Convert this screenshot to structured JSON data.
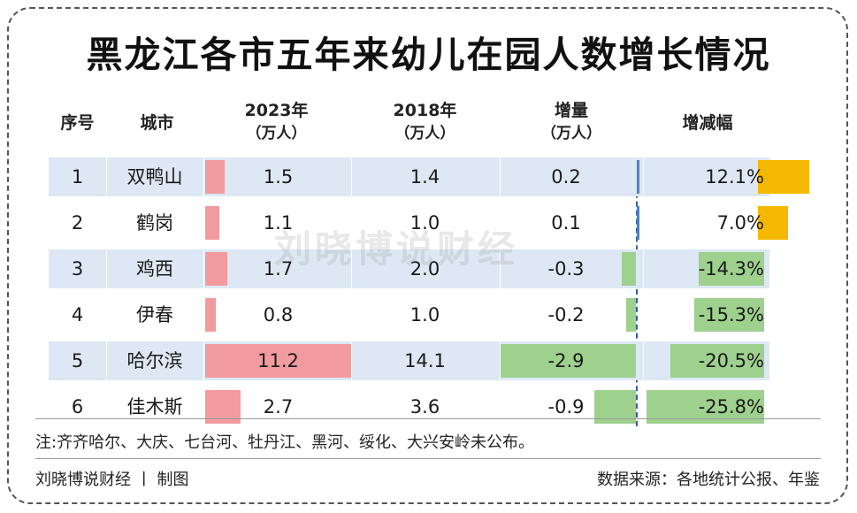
{
  "title": "黑龙江各市五年来幼儿在园人数增长情况",
  "headers": {
    "seq": "序号",
    "city": "城市",
    "y2023": "2023年",
    "y2023_unit": "（万人）",
    "y2018": "2018年",
    "y2018_unit": "（万人）",
    "inc": "增量",
    "inc_unit": "（万人）",
    "rate": "增减幅"
  },
  "watermark": "刘晓博说财经",
  "note": "注:齐齐哈尔、大庆、七台河、牡丹江、黑河、绥化、大兴安岭未公布。",
  "footer_left": "刘晓博说财经 丨 制图",
  "footer_right": "数据来源：各地统计公报、年鉴",
  "colors": {
    "bar_2023": "#f29b9e",
    "increase_positive": "#4f81bd",
    "negative": "#9ed08e",
    "rate_positive": "#f5b800",
    "row_stripe": "#dde8f4"
  },
  "chart_data": {
    "type": "table",
    "columns": [
      "序号",
      "城市",
      "2023年（万人）",
      "2018年（万人）",
      "增量（万人）",
      "增减幅"
    ],
    "rows": [
      {
        "seq": "1",
        "city": "双鸭山",
        "v2023": 1.5,
        "v2023_text": "1.5",
        "v2018_text": "1.4",
        "inc": 0.2,
        "inc_text": "0.2",
        "rate": 12.1,
        "rate_text": "12.1%"
      },
      {
        "seq": "2",
        "city": "鹤岗",
        "v2023": 1.1,
        "v2023_text": "1.1",
        "v2018_text": "1.0",
        "inc": 0.1,
        "inc_text": "0.1",
        "rate": 7.0,
        "rate_text": "7.0%"
      },
      {
        "seq": "3",
        "city": "鸡西",
        "v2023": 1.7,
        "v2023_text": "1.7",
        "v2018_text": "2.0",
        "inc": -0.3,
        "inc_text": "-0.3",
        "rate": -14.3,
        "rate_text": "-14.3%"
      },
      {
        "seq": "4",
        "city": "伊春",
        "v2023": 0.8,
        "v2023_text": "0.8",
        "v2018_text": "1.0",
        "inc": -0.2,
        "inc_text": "-0.2",
        "rate": -15.3,
        "rate_text": "-15.3%"
      },
      {
        "seq": "5",
        "city": "哈尔滨",
        "v2023": 11.2,
        "v2023_text": "11.2",
        "v2018_text": "14.1",
        "inc": -2.9,
        "inc_text": "-2.9",
        "rate": -20.5,
        "rate_text": "-20.5%"
      },
      {
        "seq": "6",
        "city": "佳木斯",
        "v2023": 2.7,
        "v2023_text": "2.7",
        "v2018_text": "3.6",
        "inc": -0.9,
        "inc_text": "-0.9",
        "rate": -25.8,
        "rate_text": "-25.8%"
      }
    ]
  }
}
